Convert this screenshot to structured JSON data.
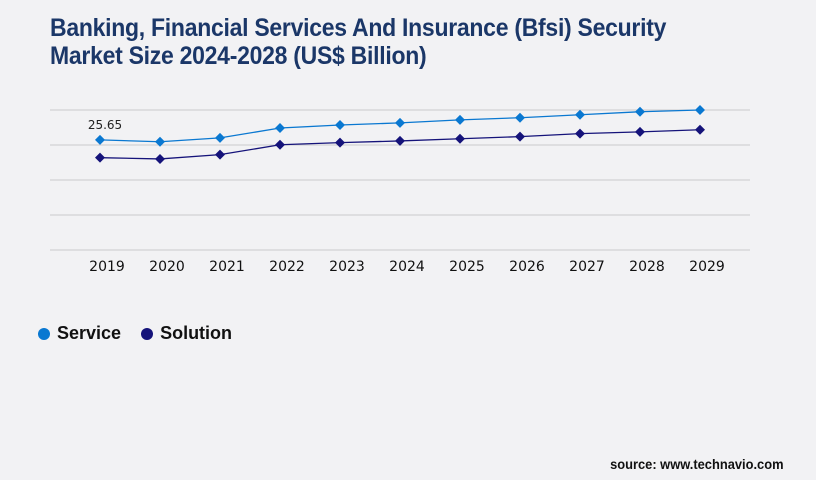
{
  "title": "Banking, Financial Services And Insurance (Bfsi) Security Market Size 2024-2028 (US$ Billion)",
  "source": "source: www.technavio.com",
  "chart_data": {
    "type": "line",
    "title": "Banking, Financial Services And Insurance (Bfsi) Security Market Size 2024-2028 (US$ Billion)",
    "xlabel": "",
    "ylabel": "",
    "x": [
      "2019",
      "2020",
      "2021",
      "2022",
      "2023",
      "2024",
      "2025",
      "2026",
      "2027",
      "2028",
      "2029"
    ],
    "ylim": [
      0,
      32.6
    ],
    "grid": true,
    "legend_position": "bottom-left",
    "series": [
      {
        "name": "Service",
        "color": "#0a78d1",
        "values": [
          25.65,
          25.2,
          26.1,
          28.4,
          29.1,
          29.6,
          30.3,
          30.8,
          31.5,
          32.2,
          32.6
        ]
      },
      {
        "name": "Solution",
        "color": "#15137a",
        "values": [
          21.5,
          21.2,
          22.2,
          24.5,
          25.0,
          25.4,
          25.9,
          26.4,
          27.1,
          27.5,
          28.0
        ]
      }
    ],
    "annotations": [
      {
        "series": "Service",
        "x": "2019",
        "text": "25.65"
      }
    ]
  },
  "legend": [
    {
      "label": "Service",
      "color": "#0a78d1"
    },
    {
      "label": "Solution",
      "color": "#15137a"
    }
  ]
}
